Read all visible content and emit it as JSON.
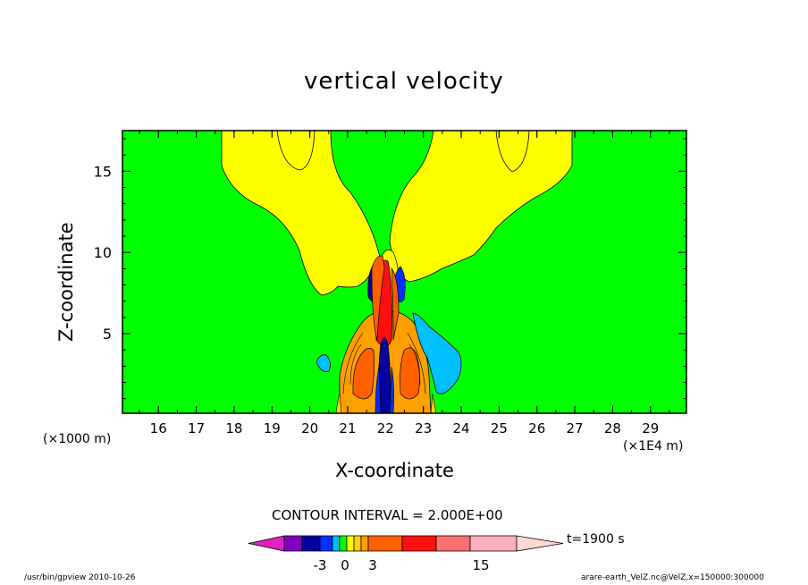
{
  "chart_data": {
    "type": "contour",
    "title": "vertical velocity",
    "xlabel": "X-coordinate",
    "ylabel": "Z-coordinate",
    "x_unit_label": "(×1000 m)",
    "x_scale_label": "(×1E4 m)",
    "x_ticks": [
      16,
      17,
      18,
      19,
      20,
      21,
      22,
      23,
      24,
      25,
      26,
      27,
      28,
      29
    ],
    "y_ticks": [
      5,
      10,
      15
    ],
    "xlim": [
      15.05,
      29.95
    ],
    "ylim": [
      0.1,
      17.5
    ],
    "contour_interval_text": "CONTOUR INTERVAL = 2.000E+00",
    "time_label": "t=1900 s",
    "colorbar": {
      "colors": [
        "#e020c0",
        "#8000c0",
        "#0000a0",
        "#0030ff",
        "#00c0ff",
        "#00ff00",
        "#ffff00",
        "#ffd000",
        "#ffa000",
        "#ff6000",
        "#ff1010",
        "#ff7070",
        "#ffb0c0",
        "#ffd8d0"
      ],
      "tick_labels": [
        "-3",
        "0",
        "3",
        "15"
      ],
      "tick_values": [
        -3,
        0,
        3,
        15
      ]
    },
    "regions": [
      {
        "name": "background",
        "level": "0 to 1",
        "color": "#00ff00"
      },
      {
        "name": "upper-left plume",
        "level": "1 to 2",
        "color": "#ffff00"
      },
      {
        "name": "upper-right plume",
        "level": "1 to 2",
        "color": "#ffff00"
      },
      {
        "name": "updraft core",
        "level": ">10",
        "color": "#ff1010"
      },
      {
        "name": "downdraft core",
        "level": "<-6",
        "color": "#0000a0"
      },
      {
        "name": "right downdraft",
        "level": "-1 to 0",
        "color": "#00c0ff"
      },
      {
        "name": "left small downdraft",
        "level": "-1 to 0",
        "color": "#00c0ff"
      }
    ],
    "grid": false,
    "legend": "bottom colorbar"
  },
  "footer": {
    "left": "/usr/bin/gpview   2010-10-26",
    "right": "arare-earth_VelZ.nc@VelZ,x=150000:300000"
  }
}
